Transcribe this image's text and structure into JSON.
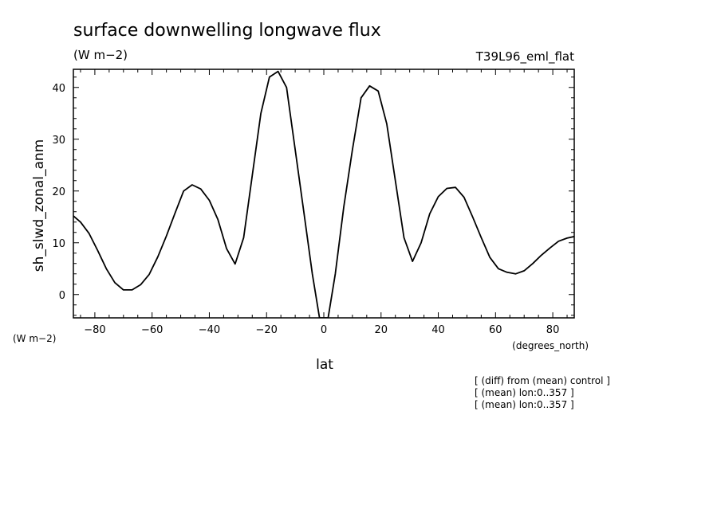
{
  "chart_data": {
    "type": "line",
    "title": "surface downwelling longwave flux",
    "units": "(W m−2)",
    "experiment": "T39L96_eml_flat",
    "ylabel": "sh_slwd_zonal_anm",
    "y_units_label": "(W m−2)",
    "xlabel": "lat",
    "x_units_label": "(degrees_north)",
    "xlim": [
      -87.5,
      87.5
    ],
    "ylim": [
      -4.5,
      43.5
    ],
    "x_ticks": [
      -80,
      -60,
      -40,
      -20,
      0,
      20,
      40,
      60,
      80
    ],
    "x_tick_labels": [
      "−80",
      "−60",
      "−40",
      "−20",
      "0",
      "20",
      "40",
      "60",
      "80"
    ],
    "y_ticks": [
      0,
      10,
      20,
      30,
      40
    ],
    "y_tick_labels": [
      "0",
      "10",
      "20",
      "30",
      "40"
    ],
    "grid": false,
    "annotations": [
      "[ (diff) from (mean) control ]",
      "[ (mean) lon:0..357 ]",
      "[ (mean) lon:0..357 ]"
    ],
    "series": [
      {
        "x": [
          -87.5,
          -85,
          -82,
          -79,
          -76,
          -73,
          -70,
          -67,
          -64,
          -61,
          -58,
          -55,
          -52,
          -49,
          -46,
          -43,
          -40,
          -37,
          -34,
          -31,
          -28,
          -25,
          -22,
          -19,
          -16,
          -13,
          -10,
          -7,
          -4,
          -1.5,
          1.5,
          4,
          7,
          10,
          13,
          16,
          19,
          22,
          25,
          28,
          31,
          34,
          37,
          40,
          43,
          46,
          49,
          52,
          55,
          58,
          61,
          64,
          67,
          70,
          73,
          76,
          79,
          82,
          85,
          87.5
        ],
        "y": [
          15.2,
          14.0,
          11.8,
          8.5,
          5.0,
          2.3,
          0.9,
          0.9,
          1.9,
          3.9,
          7.3,
          11.3,
          15.7,
          20.0,
          21.2,
          20.4,
          18.2,
          14.5,
          8.9,
          5.9,
          11.0,
          23.0,
          35.0,
          42.0,
          43.1,
          40.0,
          28.0,
          16.0,
          4.0,
          -4.5,
          -4.5,
          4.0,
          17.0,
          28.0,
          38.0,
          40.3,
          39.3,
          33.0,
          22.0,
          11.0,
          6.4,
          10.0,
          15.6,
          18.9,
          20.5,
          20.7,
          18.8,
          15.0,
          11.0,
          7.2,
          5.0,
          4.3,
          4.0,
          4.6,
          6.0,
          7.6,
          9.0,
          10.3,
          10.9,
          11.2
        ]
      }
    ]
  }
}
